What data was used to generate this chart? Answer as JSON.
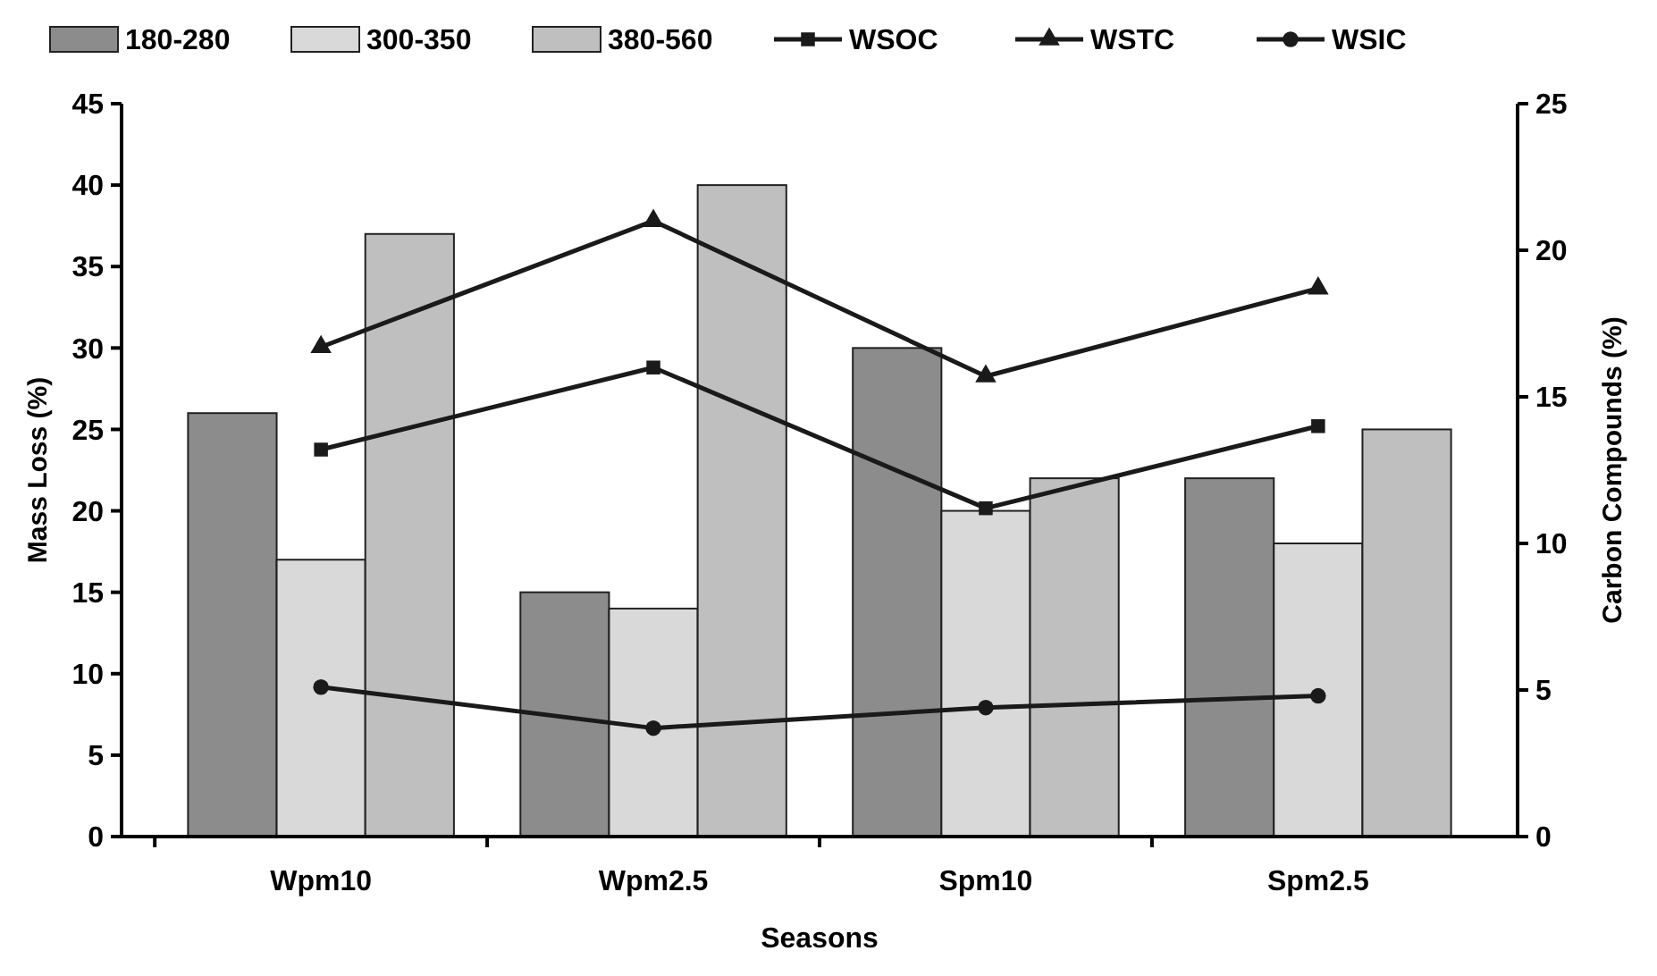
{
  "chart_data": {
    "type": "bar",
    "xlabel": "Seasons",
    "ylabel": "Mass Loss (%)",
    "y2label": "Carbon Compounds (%)",
    "categories": [
      "Wpm10",
      "Wpm2.5",
      "Spm10",
      "Spm2.5"
    ],
    "series": [
      {
        "name": "180-280",
        "color": "#8c8c8c",
        "values": [
          26,
          15,
          30,
          22
        ]
      },
      {
        "name": "300-350",
        "color": "#d9d9d9",
        "values": [
          17,
          14,
          20,
          18
        ]
      },
      {
        "name": "380-560",
        "color": "#bfbfbf",
        "values": [
          37,
          40,
          22,
          25
        ]
      },
      {
        "name": "WSOC",
        "type": "line",
        "axis": "y2",
        "marker": "square",
        "color": "#1a1a1a",
        "values": [
          13.2,
          16,
          11.2,
          14
        ]
      },
      {
        "name": "WSTC",
        "type": "line",
        "axis": "y2",
        "marker": "triangle",
        "color": "#1a1a1a",
        "values": [
          16.7,
          21,
          15.7,
          18.7
        ]
      },
      {
        "name": "WSIC",
        "type": "line",
        "axis": "y2",
        "marker": "circle",
        "color": "#1a1a1a",
        "values": [
          5.1,
          3.7,
          4.4,
          4.8
        ]
      }
    ],
    "ylim": [
      0,
      45
    ],
    "yticks": [
      0,
      5,
      10,
      15,
      20,
      25,
      30,
      35,
      40,
      45
    ],
    "y2lim": [
      0,
      25
    ],
    "y2ticks": [
      0,
      5,
      10,
      15,
      20,
      25
    ],
    "legend": "top",
    "line_style": "solid",
    "grid": false
  }
}
